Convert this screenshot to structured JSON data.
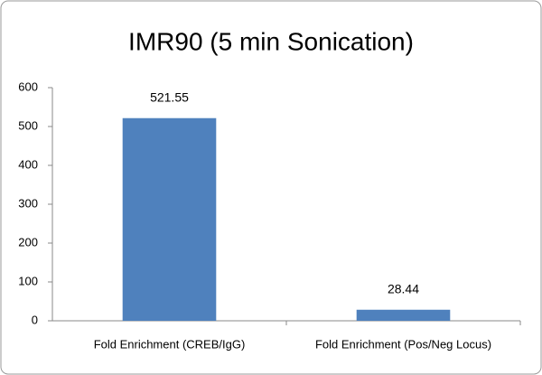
{
  "chart_data": {
    "type": "bar",
    "title": "IMR90 (5 min Sonication)",
    "categories": [
      "Fold Enrichment (CREB/IgG)",
      "Fold Enrichment (Pos/Neg Locus)"
    ],
    "values": [
      521.55,
      28.44
    ],
    "color": "#4f81bd",
    "ylim": [
      0,
      600
    ],
    "yticks": [
      0,
      100,
      200,
      300,
      400,
      500,
      600
    ],
    "grid": false
  }
}
